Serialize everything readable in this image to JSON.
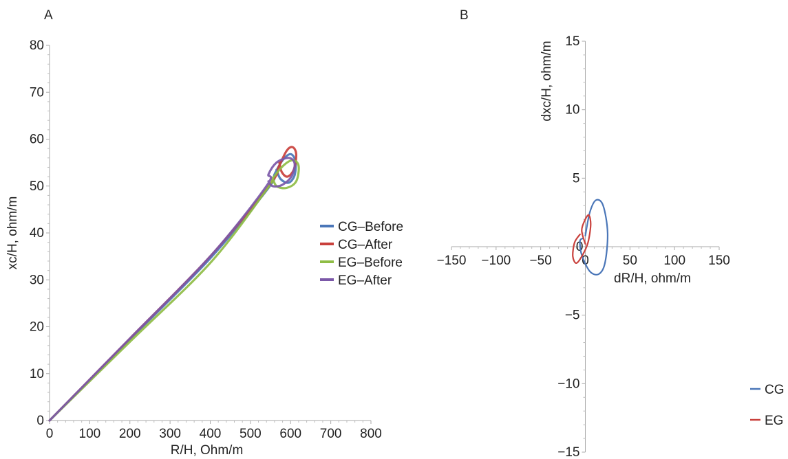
{
  "chart_data": [
    {
      "panel": "A",
      "type": "line",
      "xlabel": "R/H, Ohm/m",
      "ylabel": "xc/H, ohm/m",
      "xlim": [
        0,
        800
      ],
      "ylim": [
        0,
        80
      ],
      "xticks": [
        0,
        100,
        200,
        300,
        400,
        500,
        600,
        700,
        800
      ],
      "yticks": [
        0,
        10,
        20,
        30,
        40,
        50,
        60,
        70,
        80
      ],
      "grid": false,
      "legend_position": "right",
      "series": [
        {
          "name": "CG–Before",
          "color": "#4a76b8",
          "points": [
            [
              0,
              0
            ],
            [
              200,
              17.3
            ],
            [
              400,
              34.6
            ],
            [
              545,
              49.6
            ],
            [
              560,
              52.5
            ],
            [
              580,
              55.5
            ],
            [
              600,
              56.8
            ],
            [
              612,
              55.3
            ],
            [
              610,
              52.3
            ],
            [
              595,
              50.7
            ],
            [
              575,
              51.5
            ],
            [
              565,
              53.5
            ]
          ]
        },
        {
          "name": "CG–After",
          "color": "#c9403c",
          "points": [
            [
              0,
              0
            ],
            [
              200,
              17.5
            ],
            [
              400,
              35.0
            ],
            [
              550,
              50.5
            ],
            [
              570,
              54.0
            ],
            [
              590,
              57.5
            ],
            [
              605,
              58.3
            ],
            [
              614,
              56.8
            ],
            [
              608,
              53.5
            ],
            [
              592,
              52.0
            ],
            [
              578,
              53.0
            ],
            [
              572,
              55.0
            ]
          ]
        },
        {
          "name": "EG–Before",
          "color": "#8fbd45",
          "points": [
            [
              0,
              0
            ],
            [
              200,
              16.8
            ],
            [
              400,
              33.6
            ],
            [
              540,
              49.2
            ],
            [
              555,
              51.5
            ],
            [
              580,
              54.2
            ],
            [
              605,
              55.5
            ],
            [
              620,
              54.3
            ],
            [
              614,
              51.0
            ],
            [
              590,
              49.6
            ],
            [
              565,
              50.0
            ],
            [
              555,
              51.8
            ]
          ]
        },
        {
          "name": "EG–After",
          "color": "#7b58a8",
          "points": [
            [
              0,
              0
            ],
            [
              200,
              17.5
            ],
            [
              400,
              35.0
            ],
            [
              540,
              50.0
            ],
            [
              545,
              52.5
            ],
            [
              565,
              55.0
            ],
            [
              595,
              56.0
            ],
            [
              610,
              54.8
            ],
            [
              602,
              52.0
            ],
            [
              578,
              50.2
            ],
            [
              555,
              50.0
            ],
            [
              545,
              51.0
            ]
          ]
        }
      ]
    },
    {
      "panel": "B",
      "type": "line",
      "xlabel": "dR/H, ohm/m",
      "ylabel": "dxc/H, ohm/m",
      "xlim": [
        -150,
        150
      ],
      "ylim": [
        -15,
        15
      ],
      "xticks": [
        -150,
        -100,
        -50,
        0,
        50,
        100,
        150
      ],
      "xtick_labels": [
        "−150",
        "−100",
        "−50",
        "0",
        "50",
        "100",
        "150"
      ],
      "yticks": [
        -15,
        -10,
        -5,
        0,
        5,
        10,
        15
      ],
      "ytick_labels": [
        "−15",
        "−10",
        "−5",
        "0",
        "5",
        "10",
        "15"
      ],
      "grid": false,
      "legend_position": "bottom-right",
      "series": [
        {
          "name": "CG",
          "color": "#4a76b8",
          "points": [
            [
              0,
              0.8
            ],
            [
              5,
              2.5
            ],
            [
              12,
              3.4
            ],
            [
              20,
              3.0
            ],
            [
              25,
              1.0
            ],
            [
              22,
              -1.2
            ],
            [
              15,
              -2.0
            ],
            [
              5,
              -1.8
            ],
            [
              -4,
              -0.6
            ],
            [
              -6,
              0.4
            ],
            [
              -3,
              0.6
            ]
          ]
        },
        {
          "name": "EG",
          "color": "#c9403c",
          "points": [
            [
              0,
              0.2
            ],
            [
              -4,
              1.2
            ],
            [
              0,
              2.0
            ],
            [
              4,
              2.3
            ],
            [
              6,
              1.6
            ],
            [
              3,
              0.3
            ],
            [
              -3,
              -0.6
            ],
            [
              -10,
              -1.2
            ],
            [
              -14,
              -0.7
            ],
            [
              -12,
              0.3
            ],
            [
              -6,
              0.9
            ]
          ]
        }
      ]
    }
  ]
}
